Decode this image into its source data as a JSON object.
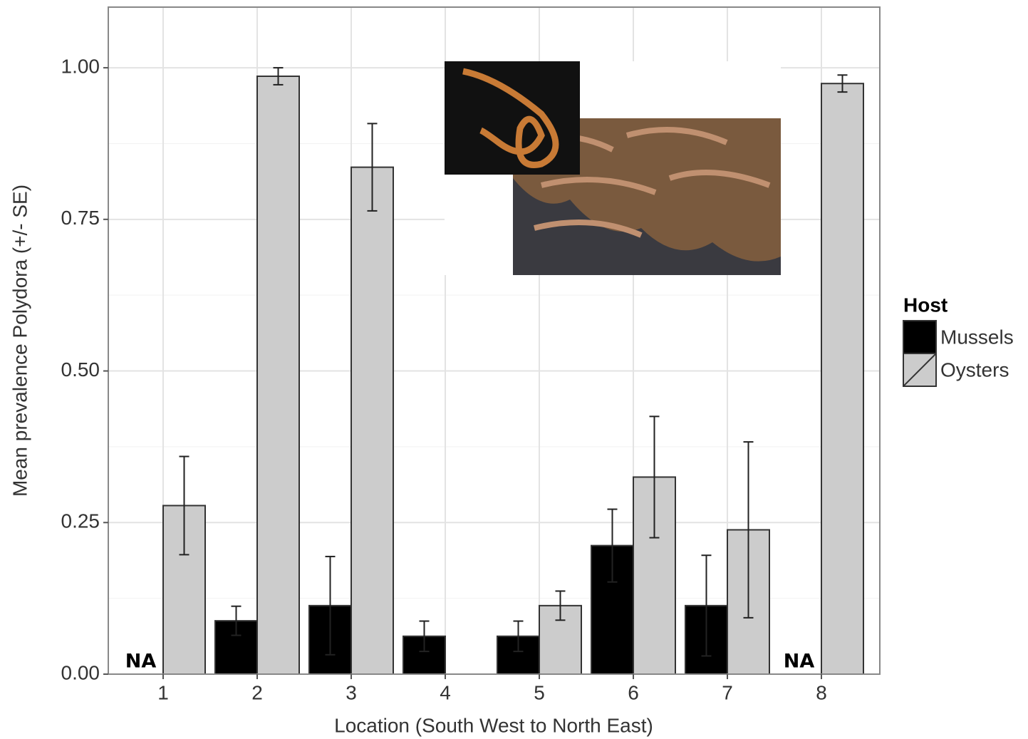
{
  "chart_data": {
    "type": "bar",
    "x_label": "Location (South West to North East)",
    "y_label": "Mean prevalence Polydora (+/- SE)",
    "categories": [
      "1",
      "2",
      "3",
      "4",
      "5",
      "6",
      "7",
      "8"
    ],
    "series": [
      {
        "name": "Mussels",
        "color": "#000000",
        "values": [
          null,
          0.088,
          0.113,
          0.0625,
          0.0625,
          0.212,
          0.113,
          null
        ],
        "errors": [
          null,
          0.024,
          0.081,
          0.025,
          0.025,
          0.06,
          0.083,
          null
        ]
      },
      {
        "name": "Oysters",
        "color": "#cccccc",
        "values": [
          0.278,
          0.986,
          0.836,
          null,
          0.113,
          0.325,
          0.238,
          0.974
        ],
        "errors": [
          0.081,
          0.014,
          0.072,
          null,
          0.024,
          0.1,
          0.145,
          0.014
        ]
      }
    ],
    "annotations": [
      {
        "text": "NA",
        "x": "1"
      },
      {
        "text": "NA",
        "x": "8"
      }
    ],
    "ylim": [
      0,
      1.1
    ],
    "yticks": [
      {
        "value": 0,
        "label": "0.00"
      },
      {
        "value": 0.25,
        "label": "0.25"
      },
      {
        "value": 0.5,
        "label": "0.50"
      },
      {
        "value": 0.75,
        "label": "0.75"
      },
      {
        "value": 1,
        "label": "1.00"
      }
    ],
    "grid": true,
    "legend_title": "Host",
    "legend_position": "right"
  }
}
